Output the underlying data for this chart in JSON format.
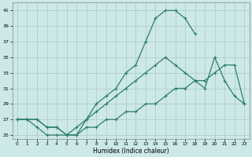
{
  "xlabel": "Humidex (Indice chaleur)",
  "line1": {
    "x": [
      0,
      1,
      2,
      3,
      4,
      5,
      6,
      7,
      8,
      9,
      10,
      11,
      12,
      13,
      14,
      15,
      16,
      17,
      18
    ],
    "y": [
      27,
      27,
      27,
      26,
      26,
      25,
      25,
      27,
      29,
      30,
      31,
      33,
      34,
      37,
      40,
      41,
      41,
      40,
      38
    ]
  },
  "line2": {
    "x": [
      0,
      1,
      2,
      3,
      4,
      5,
      6,
      7,
      8,
      9,
      10,
      11,
      12,
      13,
      14,
      15,
      16,
      17,
      18,
      19,
      20,
      21,
      22,
      23
    ],
    "y": [
      27,
      27,
      26,
      25,
      25,
      25,
      26,
      27,
      28,
      29,
      30,
      31,
      32,
      33,
      34,
      35,
      34,
      33,
      32,
      31,
      35,
      32,
      30,
      29
    ]
  },
  "line3": {
    "x": [
      0,
      1,
      2,
      3,
      4,
      5,
      6,
      7,
      8,
      9,
      10,
      11,
      12,
      13,
      14,
      15,
      16,
      17,
      18,
      19,
      20,
      21,
      22,
      23
    ],
    "y": [
      27,
      27,
      27,
      26,
      26,
      25,
      25,
      26,
      26,
      27,
      27,
      28,
      28,
      29,
      29,
      30,
      31,
      31,
      32,
      32,
      33,
      34,
      34,
      29
    ]
  },
  "ylim": [
    24.5,
    42
  ],
  "xlim": [
    -0.5,
    23.5
  ],
  "yticks": [
    25,
    27,
    29,
    31,
    33,
    35,
    37,
    39,
    41
  ],
  "xticks": [
    0,
    1,
    2,
    3,
    4,
    5,
    6,
    7,
    8,
    9,
    10,
    11,
    12,
    13,
    14,
    15,
    16,
    17,
    18,
    19,
    20,
    21,
    22,
    23
  ],
  "bg_color": "#cce8e8",
  "grid_color": "#aac8c8",
  "line_color": "#2e7d6e",
  "spine_color": "#888888"
}
